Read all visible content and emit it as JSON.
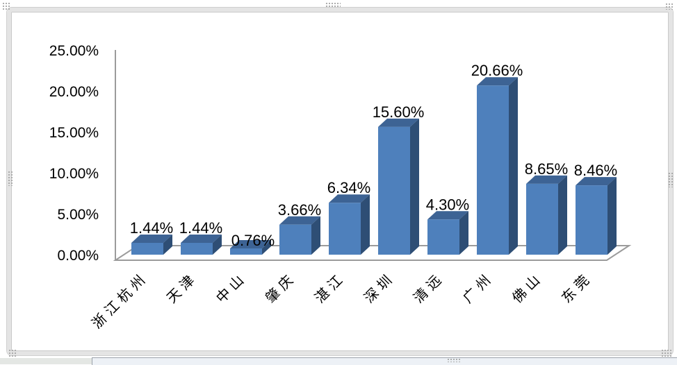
{
  "chart_data": {
    "type": "bar",
    "style": "3d-clustered-column",
    "title": "",
    "xlabel": "",
    "ylabel": "",
    "legend": "none",
    "grid": "zero-baseline-only",
    "categories": [
      "浙江杭州",
      "天津",
      "中山",
      "肇庆",
      "湛江",
      "深圳",
      "清远",
      "广州",
      "佛山",
      "东莞"
    ],
    "values": [
      1.44,
      1.44,
      0.76,
      3.66,
      6.34,
      15.6,
      4.3,
      20.66,
      8.65,
      8.46
    ],
    "data_labels": [
      "1.44%",
      "1.44%",
      "0.76%",
      "3.66%",
      "6.34%",
      "15.60%",
      "4.30%",
      "20.66%",
      "8.65%",
      "8.46%"
    ],
    "y_ticks_top_down": [
      "25.00%",
      "20.00%",
      "15.00%",
      "10.00%",
      "5.00%",
      "0.00%"
    ],
    "ylim": [
      0,
      25
    ],
    "colors": {
      "bar_front": "#4E80BC",
      "bar_top": "#3D6394",
      "bar_side": "#2E4E75",
      "axis_line": "#9B9B9B",
      "label_text": "#000000"
    }
  },
  "window": {
    "chart_object_state": "selected"
  }
}
